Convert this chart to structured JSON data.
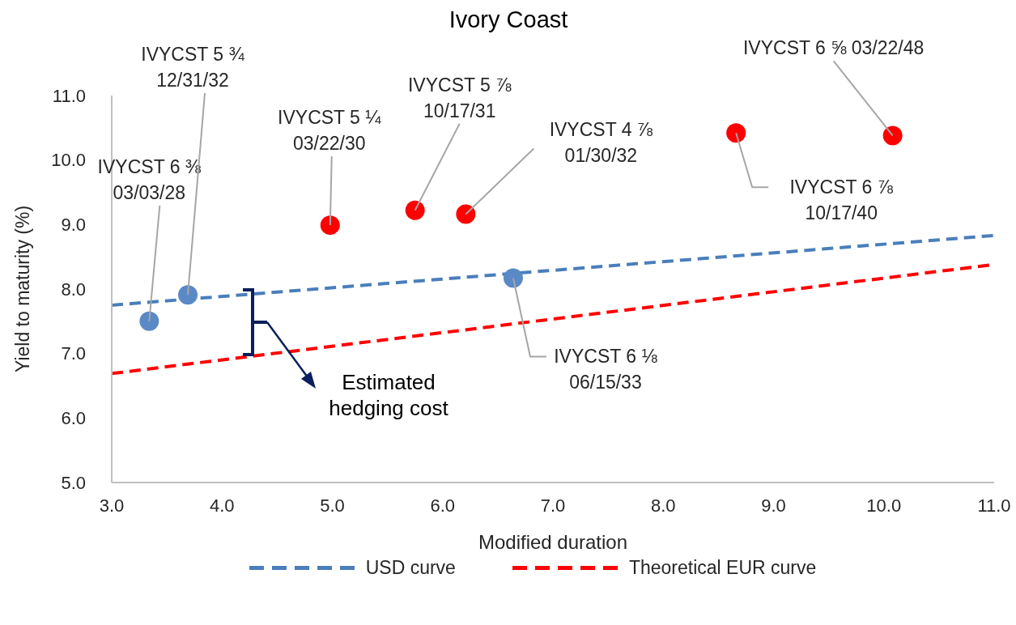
{
  "chart_data": {
    "type": "scatter",
    "title": "Ivory Coast",
    "xlabel": "Modified duration",
    "ylabel": "Yield to maturity (%)",
    "xlim": [
      3.0,
      11.0
    ],
    "xticks": [
      {
        "value": 3,
        "label": "3.0"
      },
      {
        "value": 4,
        "label": "4.0"
      },
      {
        "value": 5,
        "label": "5.0"
      },
      {
        "value": 6,
        "label": "6.0"
      },
      {
        "value": 7,
        "label": "7.0"
      },
      {
        "value": 8,
        "label": "8.0"
      },
      {
        "value": 9,
        "label": "9.0"
      },
      {
        "value": 10,
        "label": "10.0"
      },
      {
        "value": 11,
        "label": "11.0"
      }
    ],
    "ylim": [
      5.0,
      11.0
    ],
    "yticks": [
      {
        "value": 5,
        "label": "5.0"
      },
      {
        "value": 6,
        "label": "6.0"
      },
      {
        "value": 7,
        "label": "7.0"
      },
      {
        "value": 8,
        "label": "8.0"
      },
      {
        "value": 9,
        "label": "9.0"
      },
      {
        "value": 10,
        "label": "10.0"
      },
      {
        "value": 11,
        "label": "11.0"
      }
    ],
    "grid": false,
    "legend": "bottom",
    "marker": "circle",
    "series": [
      {
        "name": "USD curve",
        "type": "line",
        "line_style": "dashed",
        "marker": "none",
        "color": "#4a7ebb",
        "x": [
          3.0,
          11.0
        ],
        "values": [
          7.75,
          8.83
        ]
      },
      {
        "name": "Theoretical EUR curve",
        "type": "line",
        "line_style": "dashed",
        "marker": "none",
        "color": "#ff0000",
        "x": [
          3.0,
          11.0
        ],
        "values": [
          6.69,
          8.38
        ]
      },
      {
        "color": "#5a8ac6",
        "x": [
          3.34,
          3.69,
          6.64
        ],
        "values": [
          7.5,
          7.91,
          8.17
        ]
      },
      {
        "color": "#ff0000",
        "x": [
          4.98,
          5.75,
          6.21,
          8.66,
          10.08
        ],
        "values": [
          8.99,
          9.22,
          9.16,
          10.42,
          10.38
        ]
      }
    ],
    "annotations": [
      {
        "text": "IVYCST 6 ⅜\n03/03/28",
        "x": 3.34,
        "y": 7.5
      },
      {
        "text": "IVYCST 5 ¾\n12/31/32",
        "x": 3.69,
        "y": 7.91
      },
      {
        "text": "IVYCST 5 ¼\n03/22/30",
        "x": 4.98,
        "y": 8.99
      },
      {
        "text": "IVYCST 5 ⅞\n10/17/31",
        "x": 5.75,
        "y": 9.22
      },
      {
        "text": "IVYCST 4 ⅞\n01/30/32",
        "x": 6.21,
        "y": 9.16
      },
      {
        "text": "IVYCST 6 ⅞\n10/17/40",
        "x": 8.66,
        "y": 10.42
      },
      {
        "text": "IVYCST 6 ⅝ 03/22/48",
        "x": 10.08,
        "y": 10.38
      },
      {
        "text": "IVYCST 6 ⅛\n06/15/33",
        "x": 6.64,
        "y": 8.17
      },
      "Estimated\nhedging cost"
    ]
  }
}
